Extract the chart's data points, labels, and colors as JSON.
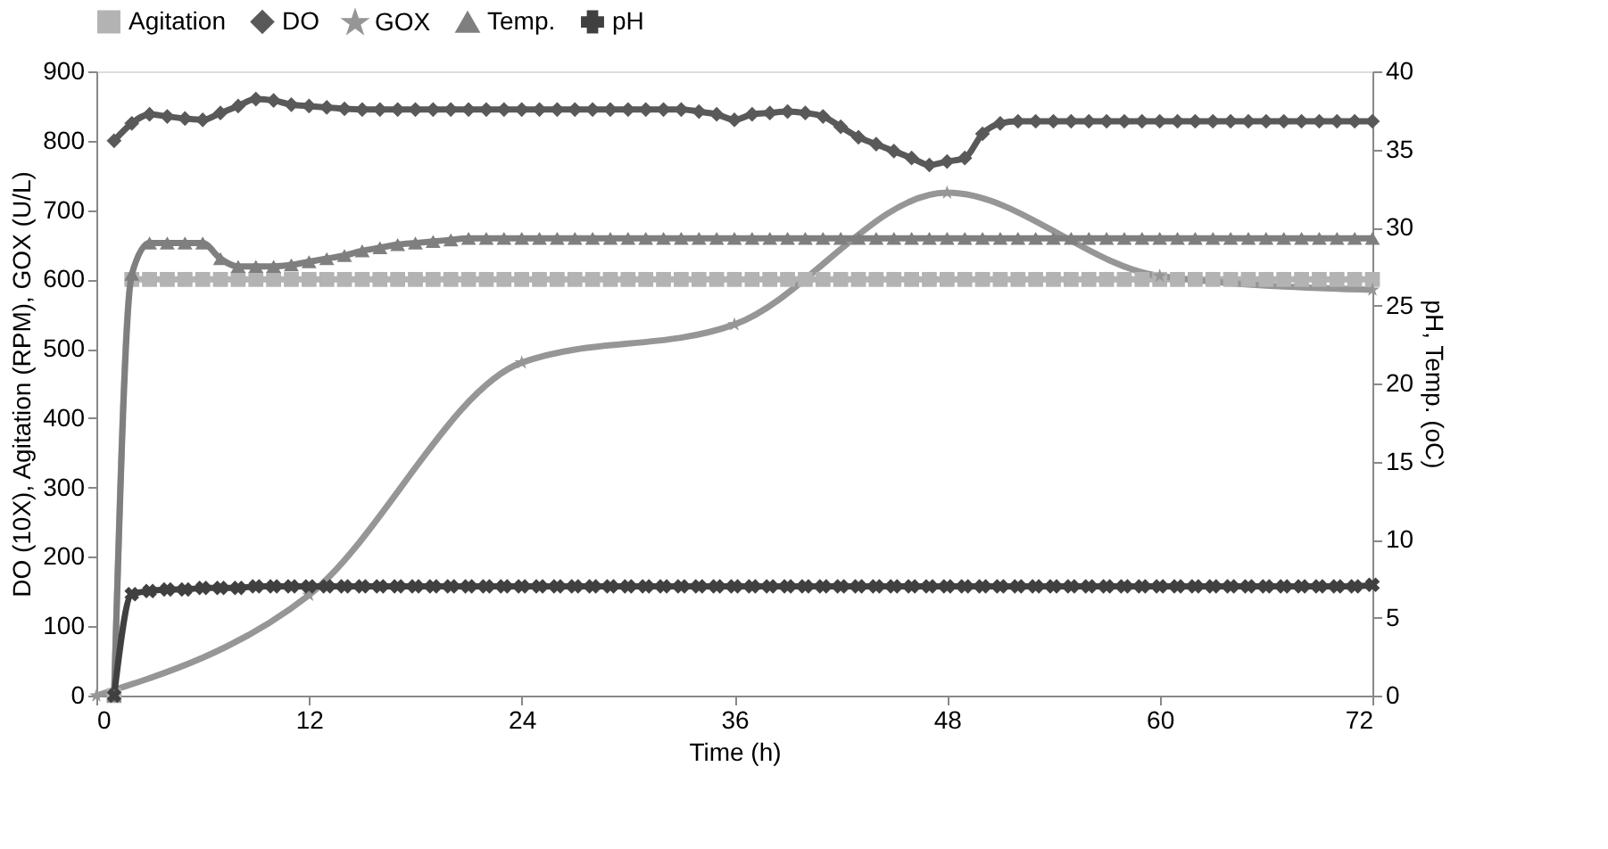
{
  "chart_data": {
    "type": "line",
    "xlabel": "Time (h)",
    "ylabel": "DO (10X), Agitation (RPM), GOX (U/L)",
    "y2label": "pH, Temp. (oC)",
    "xlim": [
      0,
      72
    ],
    "xticks": [
      0,
      12,
      24,
      36,
      48,
      60,
      72
    ],
    "ylim": [
      0,
      900
    ],
    "yticks": [
      0,
      100,
      200,
      300,
      400,
      500,
      600,
      700,
      800,
      900
    ],
    "y2lim": [
      0,
      40
    ],
    "y2ticks": [
      0,
      5,
      10,
      15,
      20,
      25,
      30,
      35,
      40
    ],
    "grid": false,
    "legend": "top",
    "line_style": "solid",
    "x": [
      1,
      2,
      3,
      4,
      5,
      6,
      7,
      8,
      9,
      10,
      11,
      12,
      13,
      14,
      15,
      16,
      17,
      18,
      19,
      20,
      21,
      22,
      23,
      24,
      25,
      26,
      27,
      28,
      29,
      30,
      31,
      32,
      33,
      34,
      35,
      36,
      37,
      38,
      39,
      40,
      41,
      42,
      43,
      44,
      45,
      46,
      47,
      48,
      49,
      50,
      51,
      52,
      53,
      54,
      55,
      56,
      57,
      58,
      59,
      60,
      61,
      62,
      63,
      64,
      65,
      66,
      67,
      68,
      69,
      70,
      71,
      72
    ],
    "series": [
      {
        "name": "Agitation",
        "color": "#b3b3b3",
        "marker": "square",
        "values": [
          0,
          600,
          600,
          600,
          600,
          600,
          600,
          600,
          600,
          600,
          600,
          600,
          600,
          600,
          600,
          600,
          600,
          600,
          600,
          600,
          600,
          600,
          600,
          600,
          600,
          600,
          600,
          600,
          600,
          600,
          600,
          600,
          600,
          600,
          600,
          600,
          600,
          600,
          600,
          600,
          600,
          600,
          600,
          600,
          600,
          600,
          600,
          600,
          600,
          600,
          600,
          600,
          600,
          600,
          600,
          600,
          600,
          600,
          600,
          600,
          600,
          600,
          600,
          600,
          600,
          600,
          600,
          600,
          600,
          600,
          600,
          600
        ]
      },
      {
        "name": "DO",
        "color": "#595959",
        "marker": "diamond",
        "values": [
          800,
          825,
          838,
          835,
          832,
          830,
          840,
          850,
          860,
          858,
          852,
          850,
          848,
          846,
          845,
          845,
          845,
          845,
          845,
          845,
          845,
          845,
          845,
          845,
          845,
          845,
          845,
          845,
          845,
          845,
          845,
          845,
          845,
          842,
          838,
          830,
          838,
          840,
          842,
          840,
          835,
          820,
          805,
          795,
          785,
          775,
          765,
          770,
          775,
          810,
          825,
          828,
          828,
          828,
          828,
          828,
          828,
          828,
          828,
          828,
          828,
          828,
          828,
          828,
          828,
          828,
          828,
          828,
          828,
          828,
          828,
          828
        ]
      },
      {
        "name": "GOX",
        "color": "#969696",
        "marker": "star",
        "x": [
          0,
          12,
          24,
          36,
          48,
          60,
          72
        ],
        "values": [
          0,
          145,
          480,
          535,
          725,
          605,
          585
        ]
      },
      {
        "name": "Temp.",
        "color": "#7f7f7f",
        "marker": "triangle",
        "axis": "y2",
        "values": [
          0,
          27,
          29,
          29,
          29,
          29,
          28,
          27.5,
          27.5,
          27.5,
          27.6,
          27.8,
          28,
          28.2,
          28.5,
          28.7,
          28.9,
          29,
          29.1,
          29.2,
          29.3,
          29.3,
          29.3,
          29.3,
          29.3,
          29.3,
          29.3,
          29.3,
          29.3,
          29.3,
          29.3,
          29.3,
          29.3,
          29.3,
          29.3,
          29.3,
          29.3,
          29.3,
          29.3,
          29.3,
          29.3,
          29.3,
          29.3,
          29.3,
          29.3,
          29.3,
          29.3,
          29.3,
          29.3,
          29.3,
          29.3,
          29.3,
          29.3,
          29.3,
          29.3,
          29.3,
          29.3,
          29.3,
          29.3,
          29.3,
          29.3,
          29.3,
          29.3,
          29.3,
          29.3,
          29.3,
          29.3,
          29.3,
          29.3,
          29.3,
          29.3,
          29.3
        ]
      },
      {
        "name": "pH",
        "color": "#404040",
        "marker": "cross",
        "axis": "y2",
        "values": [
          0,
          6.5,
          6.7,
          6.8,
          6.8,
          6.9,
          6.9,
          6.9,
          7,
          7,
          7,
          7,
          7,
          7,
          7,
          7,
          7,
          7,
          7,
          7,
          7,
          7,
          7,
          7,
          7,
          7,
          7,
          7,
          7,
          7,
          7,
          7,
          7,
          7,
          7,
          7,
          7,
          7,
          7,
          7,
          7,
          7,
          7,
          7,
          7,
          7,
          7,
          7,
          7,
          7,
          7,
          7,
          7,
          7,
          7,
          7,
          7,
          7,
          7,
          7,
          7,
          7,
          7,
          7,
          7,
          7,
          7,
          7,
          7,
          7,
          7,
          7.1
        ]
      }
    ]
  }
}
